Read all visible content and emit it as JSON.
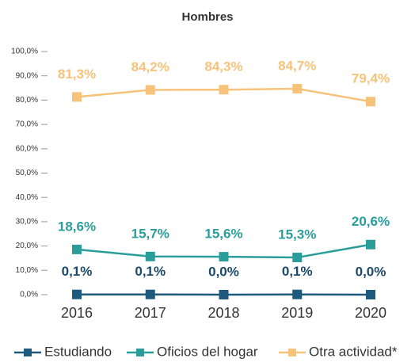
{
  "chart_data": {
    "type": "line",
    "title": "Hombres",
    "categories": [
      "2016",
      "2017",
      "2018",
      "2019",
      "2020"
    ],
    "ylim": [
      0,
      100
    ],
    "yticks": [
      {
        "value": 0,
        "label": "0,0%"
      },
      {
        "value": 10,
        "label": "10,0%"
      },
      {
        "value": 20,
        "label": "20,0%"
      },
      {
        "value": 30,
        "label": "30,0%"
      },
      {
        "value": 40,
        "label": "40,0%"
      },
      {
        "value": 50,
        "label": "50,0%"
      },
      {
        "value": 60,
        "label": "60,0%"
      },
      {
        "value": 70,
        "label": "70,0%"
      },
      {
        "value": 80,
        "label": "80,0%"
      },
      {
        "value": 90,
        "label": "90,0%"
      },
      {
        "value": 100,
        "label": "100,0%"
      }
    ],
    "legend": "bottom",
    "series": [
      {
        "name": "Estudiando",
        "color": "#1d5a7e",
        "values": [
          0.1,
          0.1,
          0.0,
          0.1,
          0.0
        ],
        "value_labels": [
          "0,1%",
          "0,1%",
          "0,0%",
          "0,1%",
          "0,0%"
        ]
      },
      {
        "name": "Oficios del hogar",
        "color": "#2a9d9b",
        "values": [
          18.6,
          15.7,
          15.6,
          15.3,
          20.6
        ],
        "value_labels": [
          "18,6%",
          "15,7%",
          "15,6%",
          "15,3%",
          "20,6%"
        ]
      },
      {
        "name": "Otra actividad*",
        "color": "#f7c27a",
        "values": [
          81.3,
          84.2,
          84.3,
          84.7,
          79.4
        ],
        "value_labels": [
          "81,3%",
          "84,2%",
          "84,3%",
          "84,7%",
          "79,4%"
        ]
      }
    ]
  }
}
